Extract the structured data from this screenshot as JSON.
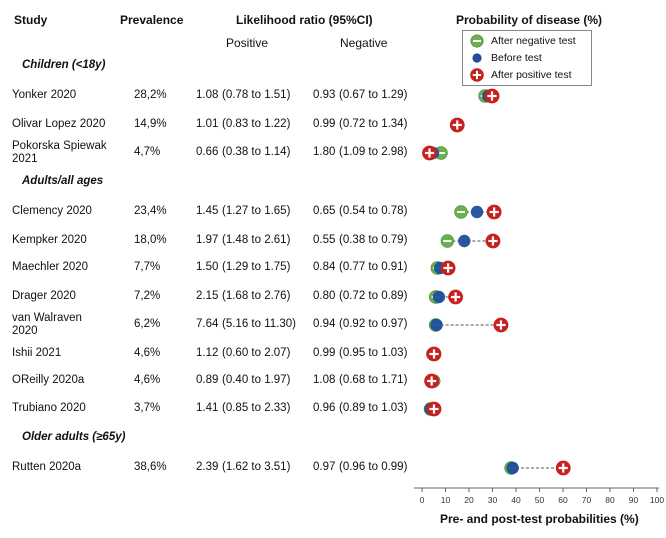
{
  "headers": {
    "study": "Study",
    "prevalence": "Prevalence",
    "lr": "Likelihood ratio (95%CI)",
    "positive": "Positive",
    "negative": "Negative",
    "probability": "Probability of disease (%)"
  },
  "legend": {
    "after_negative": "After negative test",
    "before": "Before test",
    "after_positive": "After positive test"
  },
  "colors": {
    "negative": "#6ab04c",
    "before": "#1f4e9a",
    "positive": "#c8201f",
    "line": "#555555"
  },
  "chart_data": {
    "type": "scatter",
    "title": "Probability of disease (%)",
    "xlabel": "Pre- and post-test probabilities (%)",
    "xlim": [
      0,
      100
    ],
    "xticks": [
      0,
      10,
      20,
      30,
      40,
      50,
      60,
      70,
      80,
      90,
      100
    ],
    "groups": [
      {
        "label": "Children (<18y)",
        "rows": [
          {
            "study": "Yonker 2020",
            "study_lines": [
              "Yonker 2020"
            ],
            "prevalence": "28,2%",
            "lr_pos": "1.08",
            "ci_pos": "(0.78 to 1.51)",
            "lr_neg": "0.93",
            "ci_neg": "(0.67 to 1.29)",
            "neg": 26.8,
            "pre": 28.2,
            "pos": 29.8
          },
          {
            "study": "Olivar Lopez 2020",
            "study_lines": [
              "Olivar Lopez 2020"
            ],
            "prevalence": "14,9%",
            "lr_pos": "1.01",
            "ci_pos": "(0.83 to 1.22)",
            "lr_neg": "0.99",
            "ci_neg": "(0.72 to 1.34)",
            "neg": 14.8,
            "pre": 14.9,
            "pos": 15.0
          },
          {
            "study": "Pokorska Spiewak 2021",
            "study_lines": [
              "Pokorska Spiewak",
              "2021"
            ],
            "prevalence": "4,7%",
            "lr_pos": "0.66",
            "ci_pos": "(0.38 to 1.14)",
            "lr_neg": "1.80",
            "ci_neg": "(1.09 to 2.98)",
            "neg": 8.1,
            "pre": 4.7,
            "pos": 3.2
          }
        ]
      },
      {
        "label": "Adults/all ages",
        "rows": [
          {
            "study": "Clemency 2020",
            "study_lines": [
              "Clemency 2020"
            ],
            "prevalence": "23,4%",
            "lr_pos": "1.45",
            "ci_pos": "(1.27 to 1.65)",
            "lr_neg": "0.65",
            "ci_neg": "(0.54 to 0.78)",
            "neg": 16.6,
            "pre": 23.4,
            "pos": 30.7
          },
          {
            "study": "Kempker 2020",
            "study_lines": [
              "Kempker 2020"
            ],
            "prevalence": "18,0%",
            "lr_pos": "1.97",
            "ci_pos": "(1.48 to 2.61)",
            "lr_neg": "0.55",
            "ci_neg": "(0.38 to 0.79)",
            "neg": 10.8,
            "pre": 18.0,
            "pos": 30.2
          },
          {
            "study": "Maechler 2020",
            "study_lines": [
              "Maechler 2020"
            ],
            "prevalence": "7,7%",
            "lr_pos": "1.50",
            "ci_pos": "(1.29 to 1.75)",
            "lr_neg": "0.84",
            "ci_neg": "(0.77 to 0.91)",
            "neg": 6.5,
            "pre": 7.7,
            "pos": 11.1
          },
          {
            "study": "Drager 2020",
            "study_lines": [
              "Drager 2020"
            ],
            "prevalence": "7,2%",
            "lr_pos": "2.15",
            "ci_pos": "(1.68 to 2.76)",
            "lr_neg": "0.80",
            "ci_neg": "(0.72 to 0.89)",
            "neg": 5.8,
            "pre": 7.2,
            "pos": 14.3
          },
          {
            "study": "van Walraven 2020",
            "study_lines": [
              "van Walraven",
              "2020"
            ],
            "prevalence": "6,2%",
            "lr_pos": "7.64",
            "ci_pos": "(5.16 to 11.30)",
            "lr_neg": "0.94",
            "ci_neg": "(0.92 to 0.97)",
            "neg": 5.8,
            "pre": 6.2,
            "pos": 33.6
          },
          {
            "study": "Ishii 2021",
            "study_lines": [
              "Ishii 2021"
            ],
            "prevalence": "4,6%",
            "lr_pos": "1.12",
            "ci_pos": "(0.60 to 2.07)",
            "lr_neg": "0.99",
            "ci_neg": "(0.95 to 1.03)",
            "neg": 4.6,
            "pre": 4.6,
            "pos": 5.1
          },
          {
            "study": "OReilly 2020a",
            "study_lines": [
              "OReilly 2020a"
            ],
            "prevalence": "4,6%",
            "lr_pos": "0.89",
            "ci_pos": "(0.40 to 1.97)",
            "lr_neg": "1.08",
            "ci_neg": "(0.68 to 1.71)",
            "neg": 5.0,
            "pre": 4.6,
            "pos": 4.1
          },
          {
            "study": "Trubiano 2020",
            "study_lines": [
              "Trubiano 2020"
            ],
            "prevalence": "3,7%",
            "lr_pos": "1.41",
            "ci_pos": "(0.85 to 2.33)",
            "lr_neg": "0.96",
            "ci_neg": "(0.89 to 1.03)",
            "neg": 3.6,
            "pre": 3.7,
            "pos": 5.1
          }
        ]
      },
      {
        "label": "Older adults (≥65y)",
        "rows": [
          {
            "study": "Rutten 2020a",
            "study_lines": [
              "Rutten 2020a"
            ],
            "prevalence": "38,6%",
            "lr_pos": "2.39",
            "ci_pos": "(1.62 to 3.51)",
            "lr_neg": "0.97",
            "ci_neg": "(0.96 to 0.99)",
            "neg": 37.9,
            "pre": 38.6,
            "pos": 60.1
          }
        ]
      }
    ]
  }
}
